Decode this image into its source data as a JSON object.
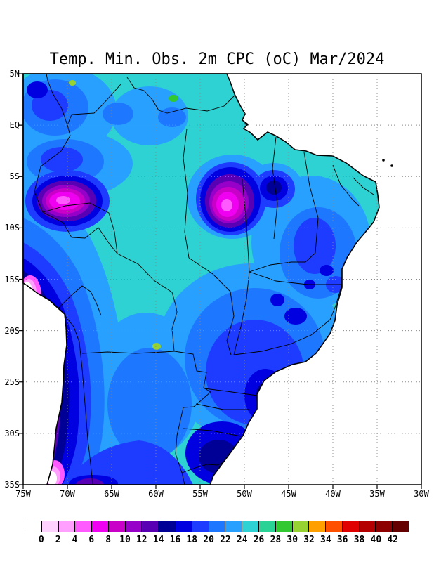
{
  "title": "Temp. Min. Obs. 2m CPC (oC) Mar/2024",
  "axes": {
    "lat_labels": [
      "5N",
      "EQ",
      "5S",
      "10S",
      "15S",
      "20S",
      "25S",
      "30S",
      "35S"
    ],
    "lon_labels": [
      "75W",
      "70W",
      "65W",
      "60W",
      "55W",
      "50W",
      "45W",
      "40W",
      "35W",
      "30W"
    ]
  },
  "colorbar": {
    "tick_labels": [
      "0",
      "2",
      "4",
      "6",
      "8",
      "10",
      "12",
      "14",
      "16",
      "18",
      "20",
      "22",
      "24",
      "26",
      "28",
      "30",
      "32",
      "34",
      "36",
      "38",
      "40",
      "42"
    ],
    "colors": [
      "#ffffff",
      "#ffd2ff",
      "#ffa0ff",
      "#ff5aff",
      "#f000f0",
      "#c800c8",
      "#9600c8",
      "#5a00b4",
      "#000096",
      "#0000e1",
      "#1e3cff",
      "#1e78ff",
      "#28a0ff",
      "#2fd2d2",
      "#2ad296",
      "#32c832",
      "#96d232",
      "#ffa000",
      "#ff5000",
      "#e10000",
      "#b40000",
      "#8c0000",
      "#640000"
    ]
  },
  "colors": {
    "line": "#000000",
    "grid": "#8a8a8a",
    "ocean": "#ffffff"
  },
  "chart_data": {
    "type": "heatmap",
    "subtype": "filled-contour temperature map over Brazil / South America",
    "title": "Temp. Min. Obs. 2m CPC (oC) Mar/2024",
    "variable": "Observed 2m minimum temperature",
    "units": "oC",
    "period": "Mar/2024",
    "source_label": "CPC",
    "lon_range": [
      "75W",
      "30W"
    ],
    "lat_range": [
      "35S",
      "5N"
    ],
    "grid": "dashed 5-degree graticule",
    "legend_position": "bottom horizontal colorbar, values 0 to 42 step 2",
    "color_scale": {
      "min": 0,
      "max": 42,
      "step": 2
    },
    "features": [
      {
        "region": "Central and northern Amazon basin",
        "approx_value_oC": "24-26"
      },
      {
        "region": "Northeast Brazil coastal strip",
        "approx_value_oC": "22-26"
      },
      {
        "region": "Cold core near Acre / eastern Peru (about 71W 7S)",
        "approx_value_oC": "6-10"
      },
      {
        "region": "Cold core over eastern Para / Tocantins (about 51W 8S)",
        "approx_value_oC": "6-10"
      },
      {
        "region": "Dark-blue pocket over southern Maranhao (about 46W 6S)",
        "approx_value_oC": "14-18"
      },
      {
        "region": "Andes cordillera strip along western edge 12S-35S",
        "approx_value_oC": "below 0 to 8"
      },
      {
        "region": "Southeast Brazil highlands (Minas Gerais / Sao Paulo / Parana)",
        "approx_value_oC": "14-20"
      },
      {
        "region": "Rio Grande do Sul (southern Brazil)",
        "approx_value_oC": "14-18"
      },
      {
        "region": "Scattered small warm spots",
        "approx_value_oC": "28-32"
      },
      {
        "region": "Ocean",
        "approx_value_oC": "blank (white)"
      }
    ]
  }
}
